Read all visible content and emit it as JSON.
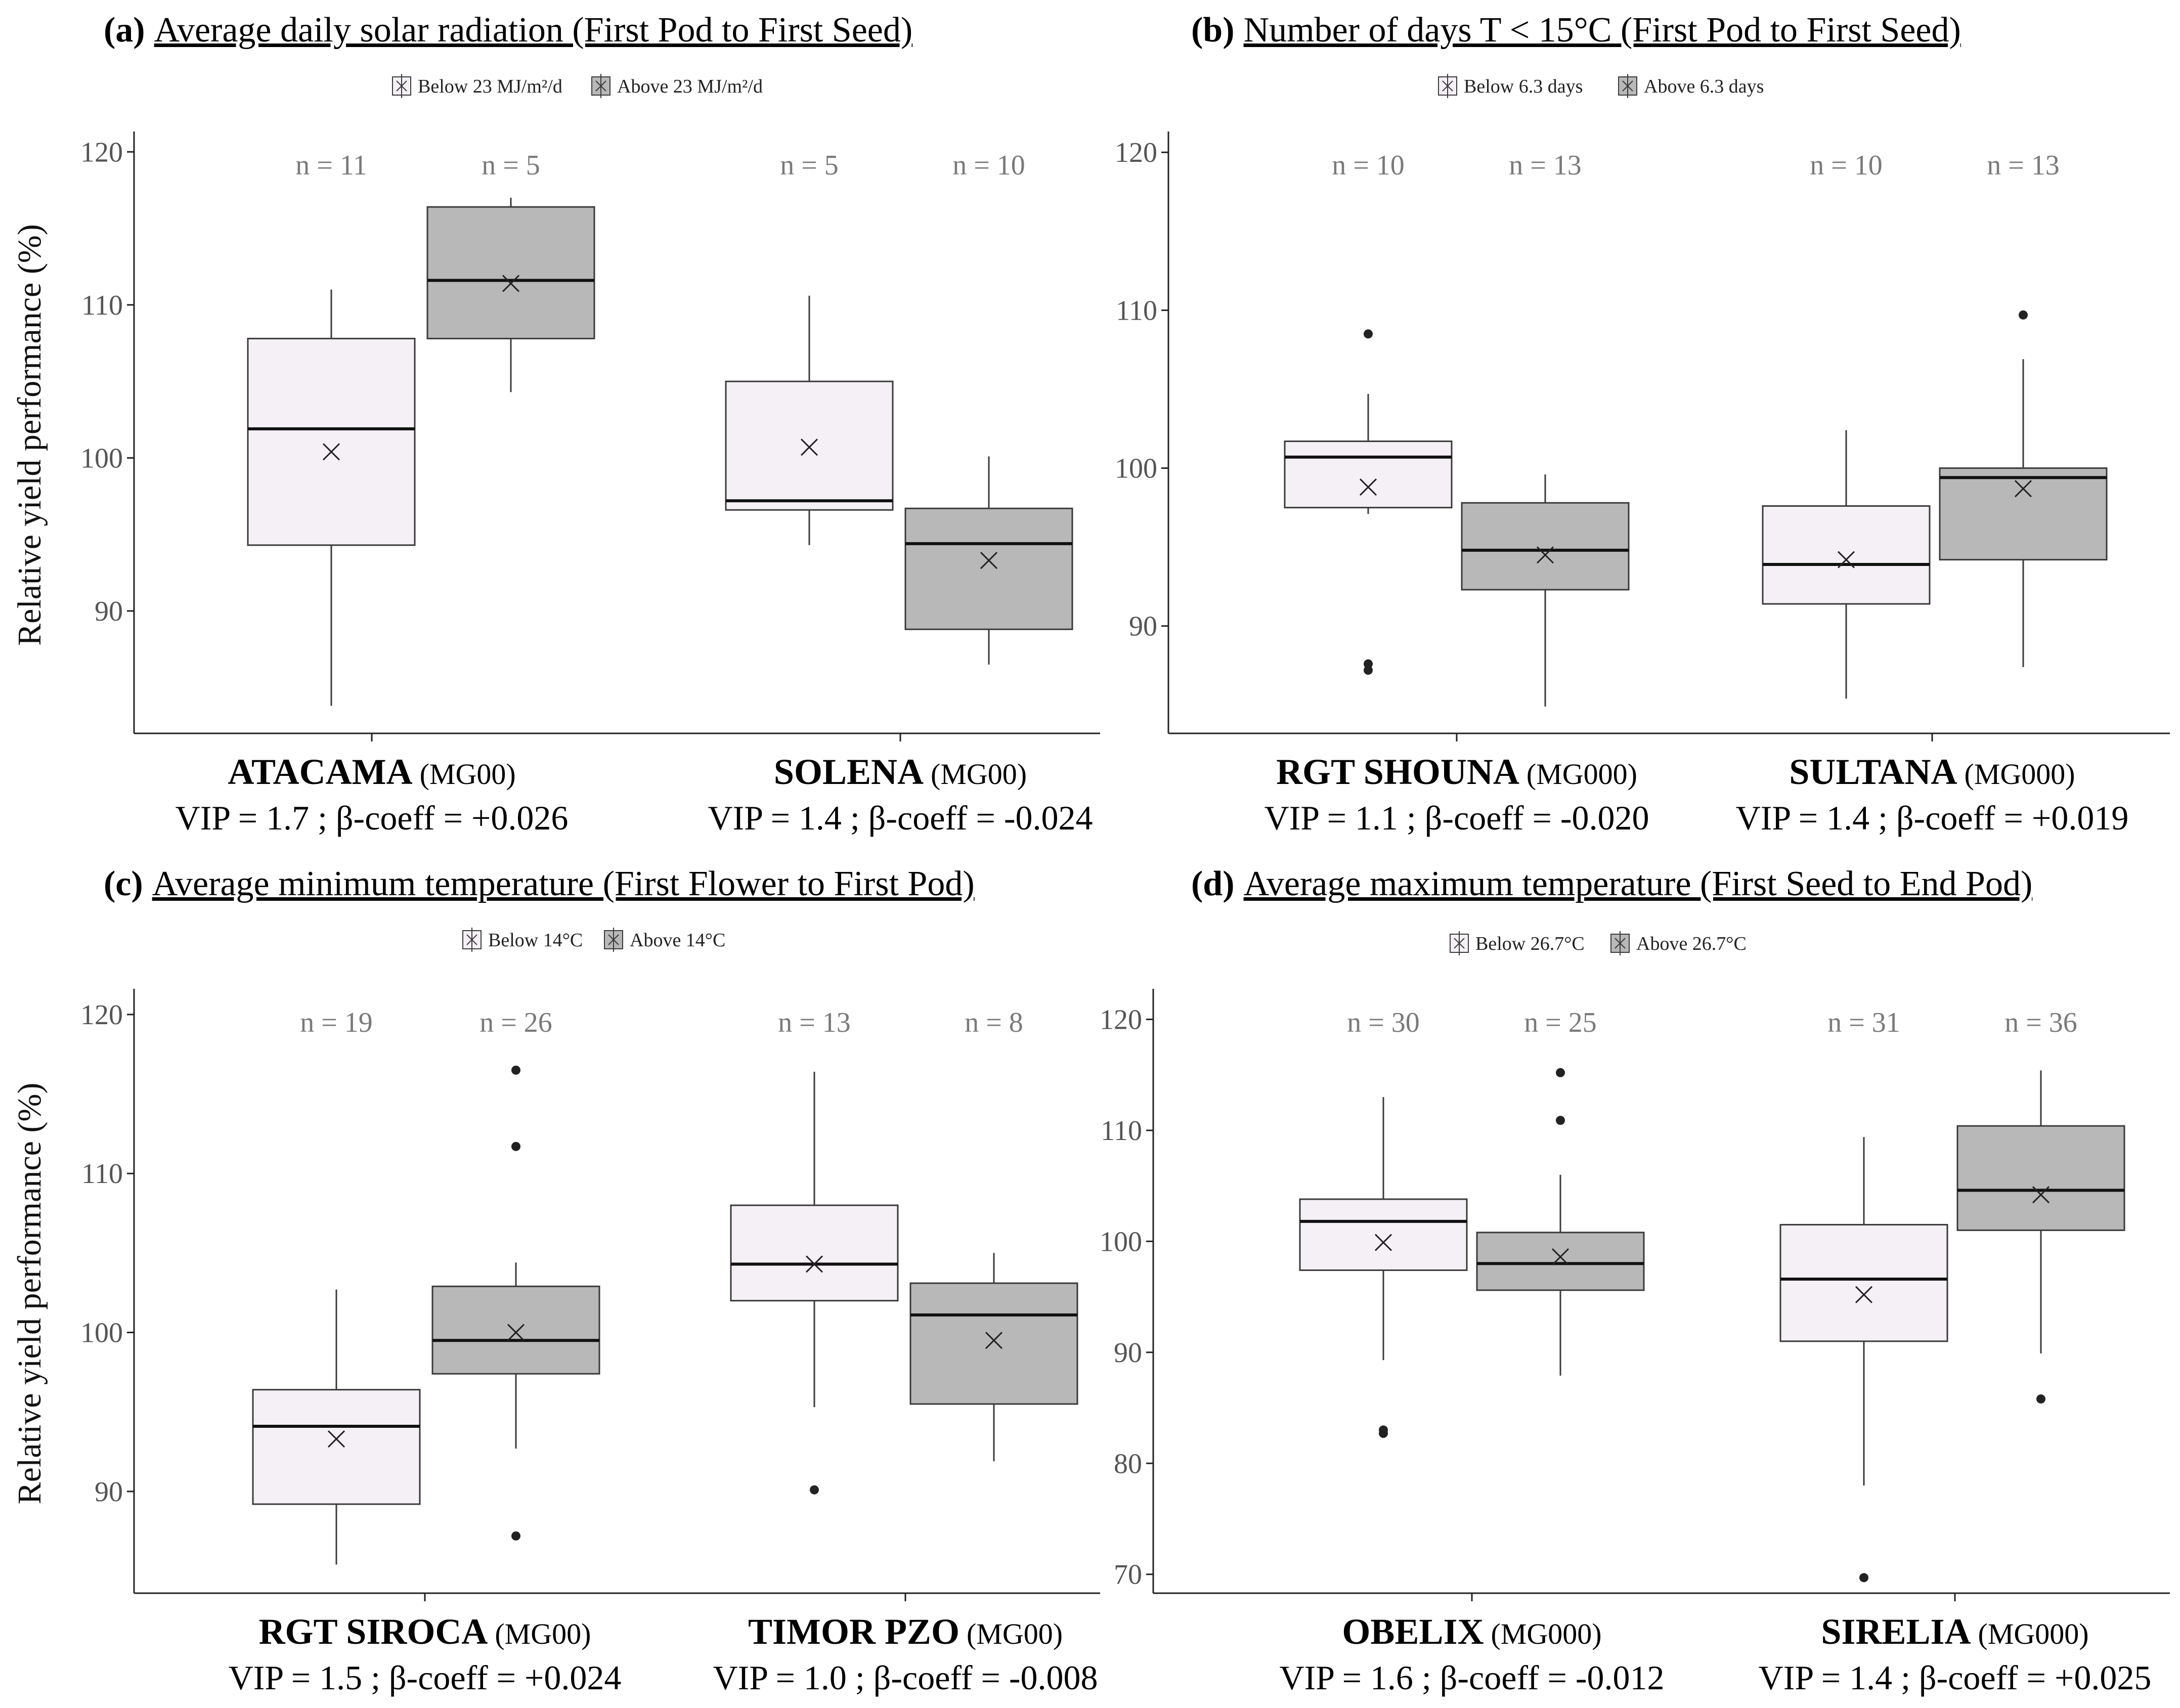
{
  "colors": {
    "below_fill": "#f4f0f6",
    "above_fill": "#b8b8b8",
    "stroke": "#3a3a3a",
    "axis": "#222222"
  },
  "chart_data": [
    {
      "type": "boxplot",
      "panel": "(a)",
      "title": "Average daily solar radiation (First Pod to First Seed)",
      "legend": [
        "Below 23 MJ/m²/d",
        "Above 23 MJ/m²/d"
      ],
      "ylabel": "Relative yield performance (%)",
      "ylim": [
        82,
        121
      ],
      "yticks": [
        90,
        100,
        110,
        120
      ],
      "yticklabels": [
        "90",
        "100",
        "110",
        "120"
      ],
      "groups": [
        {
          "name": "ATACAMA",
          "mg": "(MG00)",
          "stat": "VIP = 1.7 ; β-coeff = +0.026",
          "boxes": [
            {
              "n": "n = 11",
              "whisker_low": 83.8,
              "q1": 94.3,
              "median": 101.9,
              "q3": 107.8,
              "whisker_high": 111.0,
              "mean": 100.4,
              "outliers": []
            },
            {
              "n": "n = 5",
              "whisker_low": 104.3,
              "q1": 107.8,
              "median": 111.6,
              "q3": 116.4,
              "whisker_high": 117.0,
              "mean": 111.4,
              "outliers": []
            }
          ]
        },
        {
          "name": "SOLENA",
          "mg": "(MG00)",
          "stat": "VIP = 1.4 ; β-coeff = -0.024",
          "boxes": [
            {
              "n": "n = 5",
              "whisker_low": 94.3,
              "q1": 96.6,
              "median": 97.2,
              "q3": 105.0,
              "whisker_high": 110.6,
              "mean": 100.7,
              "outliers": []
            },
            {
              "n": "n = 10",
              "whisker_low": 86.5,
              "q1": 88.8,
              "median": 94.4,
              "q3": 96.7,
              "whisker_high": 100.1,
              "mean": 93.3,
              "outliers": []
            }
          ]
        }
      ]
    },
    {
      "type": "boxplot",
      "panel": "(b)",
      "title": "Number of days T < 15°C (First Pod to First Seed)",
      "legend": [
        "Below 6.3 days",
        "Above 6.3 days"
      ],
      "ylabel": "",
      "ylim": [
        83.2,
        121
      ],
      "yticks": [
        90,
        100,
        110,
        120
      ],
      "yticklabels": [
        "90",
        "100",
        "110",
        "120"
      ],
      "groups": [
        {
          "name": "RGT SHOUNA",
          "mg": "(MG000)",
          "stat": "VIP = 1.1 ; β-coeff = -0.020",
          "boxes": [
            {
              "n": "n = 10",
              "whisker_low": 97.1,
              "q1": 97.5,
              "median": 100.7,
              "q3": 101.7,
              "whisker_high": 104.7,
              "mean": 98.8,
              "outliers": [
                108.5,
                87.6,
                87.2
              ]
            },
            {
              "n": "n = 13",
              "whisker_low": 84.9,
              "q1": 92.3,
              "median": 94.8,
              "q3": 97.8,
              "whisker_high": 99.6,
              "mean": 94.5,
              "outliers": []
            }
          ]
        },
        {
          "name": "SULTANA",
          "mg": "(MG000)",
          "stat": "VIP = 1.4 ; β-coeff = +0.019",
          "boxes": [
            {
              "n": "n = 10",
              "whisker_low": 85.4,
              "q1": 91.4,
              "median": 93.9,
              "q3": 97.6,
              "whisker_high": 102.4,
              "mean": 94.2,
              "outliers": []
            },
            {
              "n": "n = 13",
              "whisker_low": 87.4,
              "q1": 94.2,
              "median": 99.4,
              "q3": 100.0,
              "whisker_high": 106.9,
              "mean": 98.7,
              "outliers": [
                109.7
              ]
            }
          ]
        }
      ]
    },
    {
      "type": "boxplot",
      "panel": "(c)",
      "title": "Average minimum temperature (First Flower to First Pod)",
      "legend": [
        "Below 14°C",
        "Above 14°C"
      ],
      "ylabel": "Relative yield performance (%)",
      "ylim": [
        83.6,
        121.3
      ],
      "yticks": [
        90,
        100,
        110,
        120
      ],
      "yticklabels": [
        "90",
        "100",
        "110",
        "120"
      ],
      "groups": [
        {
          "name": "RGT SIROCA",
          "mg": "(MG00)",
          "stat": "VIP = 1.5 ; β-coeff = +0.024",
          "boxes": [
            {
              "n": "n = 19",
              "whisker_low": 85.4,
              "q1": 89.2,
              "median": 94.1,
              "q3": 96.4,
              "whisker_high": 102.7,
              "mean": 93.3,
              "outliers": []
            },
            {
              "n": "n = 26",
              "whisker_low": 92.7,
              "q1": 97.4,
              "median": 99.5,
              "q3": 102.9,
              "whisker_high": 104.4,
              "mean": 100.0,
              "outliers": [
                116.5,
                111.7,
                87.2
              ]
            }
          ]
        },
        {
          "name": "TIMOR PZO",
          "mg": "(MG00)",
          "stat": "VIP = 1.0 ; β-coeff = -0.008",
          "boxes": [
            {
              "n": "n = 13",
              "whisker_low": 95.3,
              "q1": 102.0,
              "median": 104.3,
              "q3": 108.0,
              "whisker_high": 116.4,
              "mean": 104.3,
              "outliers": [
                90.1
              ]
            },
            {
              "n": "n = 8",
              "whisker_low": 91.9,
              "q1": 95.5,
              "median": 101.1,
              "q3": 103.1,
              "whisker_high": 105.0,
              "mean": 99.5,
              "outliers": []
            }
          ]
        }
      ]
    },
    {
      "type": "boxplot",
      "panel": "(d)",
      "title": "Average maximum temperature (First Seed to End Pod)",
      "legend": [
        "Below 26.7°C",
        "Above 26.7°C"
      ],
      "ylabel": "",
      "ylim": [
        68.3,
        122.3
      ],
      "yticks": [
        70,
        80,
        90,
        100,
        110,
        120
      ],
      "yticklabels": [
        "70",
        "80",
        "90",
        "100",
        "110",
        "120"
      ],
      "groups": [
        {
          "name": "OBELIX",
          "mg": "(MG000)",
          "stat": "VIP = 1.6 ; β-coeff = -0.012",
          "boxes": [
            {
              "n": "n = 30",
              "whisker_low": 89.3,
              "q1": 97.4,
              "median": 101.8,
              "q3": 103.8,
              "whisker_high": 113.0,
              "mean": 99.9,
              "outliers": [
                83.0,
                82.7
              ]
            },
            {
              "n": "n = 25",
              "whisker_low": 87.9,
              "q1": 95.6,
              "median": 98.0,
              "q3": 100.8,
              "whisker_high": 106.0,
              "mean": 98.6,
              "outliers": [
                115.2,
                110.9
              ]
            }
          ]
        },
        {
          "name": "SIRELIA",
          "mg": "(MG000)",
          "stat": "VIP = 1.4 ; β-coeff = +0.025",
          "boxes": [
            {
              "n": "n = 31",
              "whisker_low": 78.0,
              "q1": 91.0,
              "median": 96.6,
              "q3": 101.5,
              "whisker_high": 109.4,
              "mean": 95.2,
              "outliers": [
                69.7
              ]
            },
            {
              "n": "n = 36",
              "whisker_low": 89.9,
              "q1": 101.0,
              "median": 104.6,
              "q3": 110.4,
              "whisker_high": 115.4,
              "mean": 104.2,
              "outliers": [
                85.8
              ]
            }
          ]
        }
      ]
    }
  ]
}
